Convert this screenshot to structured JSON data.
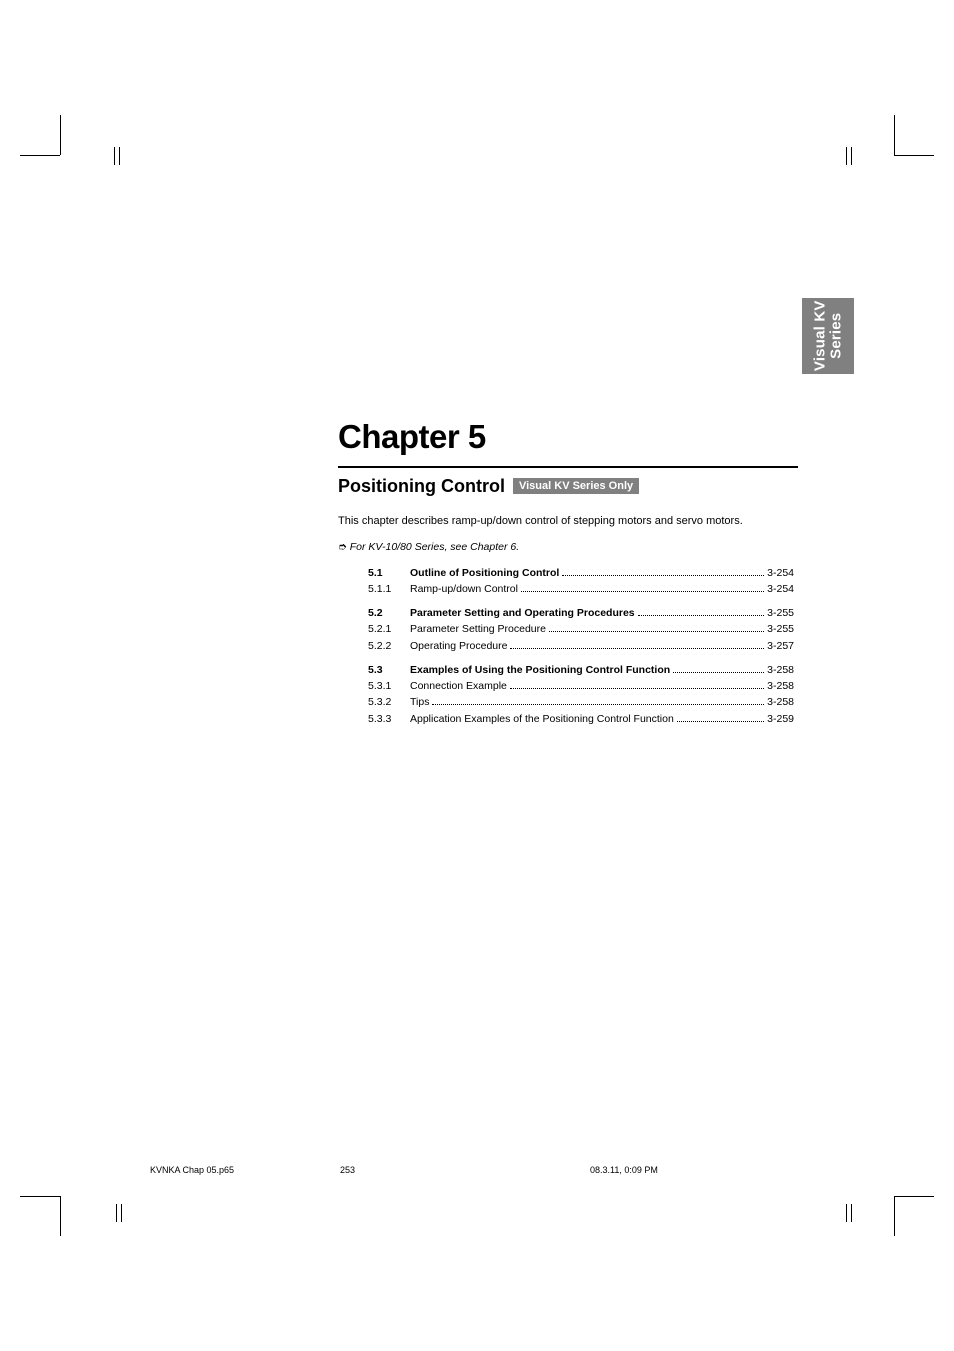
{
  "colors": {
    "page_bg": "#ffffff",
    "text": "#000000",
    "tab_bg": "#808080",
    "badge_bg": "#808080",
    "badge_text": "#ffffff"
  },
  "typography": {
    "body_font": "Arial, Helvetica, sans-serif",
    "chapter_title_pt": 33,
    "subtitle_pt": 18,
    "body_pt": 11,
    "toc_pt": 10.5,
    "footer_pt": 9
  },
  "side_tab": {
    "line1": "Visual KV",
    "line2": "Series"
  },
  "chapter": {
    "title": "Chapter 5",
    "subtitle": "Positioning Control",
    "badge": "Visual KV Series Only",
    "intro": "This chapter describes ramp-up/down control of stepping motors and servo motors.",
    "note": "For KV-10/80 Series, see Chapter 6."
  },
  "toc": [
    {
      "rows": [
        {
          "num": "5.1",
          "label": "Outline of Positioning Control",
          "page": "3-254",
          "bold": true
        },
        {
          "num": "5.1.1",
          "label": "Ramp-up/down Control",
          "page": "3-254",
          "bold": false
        }
      ]
    },
    {
      "rows": [
        {
          "num": "5.2",
          "label": "Parameter Setting and Operating Procedures",
          "page": "3-255",
          "bold": true
        },
        {
          "num": "5.2.1",
          "label": "Parameter Setting Procedure",
          "page": "3-255",
          "bold": false
        },
        {
          "num": "5.2.2",
          "label": "Operating Procedure",
          "page": "3-257",
          "bold": false
        }
      ]
    },
    {
      "rows": [
        {
          "num": "5.3",
          "label": "Examples of Using the Positioning Control Function",
          "page": "3-258",
          "bold": true
        },
        {
          "num": "5.3.1",
          "label": "Connection Example",
          "page": "3-258",
          "bold": false
        },
        {
          "num": "5.3.2",
          "label": "Tips",
          "page": "3-258",
          "bold": false
        },
        {
          "num": "5.3.3",
          "label": "Application Examples of the Positioning Control Function",
          "page": "3-259",
          "bold": false
        }
      ]
    }
  ],
  "footer": {
    "file": "KVNKA Chap 05.p65",
    "page_num": "253",
    "timestamp": "08.3.11, 0:09 PM"
  }
}
